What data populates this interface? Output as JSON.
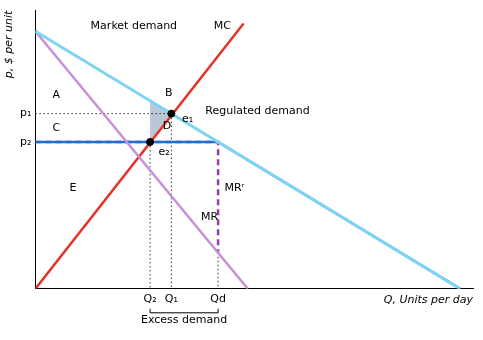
{
  "chart_data": {
    "type": "line",
    "x_label": "Q, Units per day",
    "y_label": "p, $ per unit",
    "xlim": [
      0,
      103
    ],
    "ylim": [
      0,
      108
    ],
    "xticks": [
      {
        "value": 27,
        "label": "Q₂"
      },
      {
        "value": 32,
        "label": "Q₁"
      },
      {
        "value": 43,
        "label": "Qd"
      }
    ],
    "yticks": [
      {
        "value": 68,
        "label": "p₁"
      },
      {
        "value": 57,
        "label": "p₂"
      }
    ],
    "grid": false,
    "series": [
      {
        "name": "Market demand",
        "color": "#7fd4f2",
        "x": [
          0,
          100
        ],
        "values": [
          100,
          0
        ],
        "line_style": "solid"
      },
      {
        "name": "MR",
        "color": "#c890d8",
        "x": [
          0,
          50
        ],
        "values": [
          100,
          0
        ],
        "line_style": "solid"
      },
      {
        "name": "MC",
        "color": "#e53228",
        "x": [
          0,
          49
        ],
        "values": [
          0,
          103
        ],
        "line_style": "solid"
      },
      {
        "name": "Regulated demand",
        "color": "#1e6fd0",
        "x": [
          0,
          43,
          100
        ],
        "values": [
          57,
          57,
          0
        ],
        "line_style": "solid"
      },
      {
        "name": "MRʳ",
        "color": "#8e3fa0",
        "x": [
          0,
          43,
          43
        ],
        "values": [
          57,
          57,
          14
        ],
        "line_style": "dashed"
      }
    ],
    "points": [
      {
        "label": "e₁",
        "x": 32,
        "y": 68,
        "label_x": 34.5,
        "label_y": 66
      },
      {
        "label": "e₂",
        "x": 27,
        "y": 57,
        "label_x": 29,
        "label_y": 53
      }
    ],
    "shaded_region": {
      "color": "#b9c7d6",
      "x": [
        27,
        32,
        27
      ],
      "values": [
        73,
        68,
        57
      ]
    },
    "annotations": [
      {
        "text": "Market demand",
        "x": 13,
        "y": 102
      },
      {
        "text": "MC",
        "x": 42,
        "y": 102
      },
      {
        "text": "A",
        "x": 4,
        "y": 75
      },
      {
        "text": "B",
        "x": 30.5,
        "y": 76
      },
      {
        "text": "C",
        "x": 4,
        "y": 62.5
      },
      {
        "text": "D",
        "x": 30,
        "y": 63
      },
      {
        "text": "E",
        "x": 8,
        "y": 39
      },
      {
        "text": "Regulated demand",
        "x": 40,
        "y": 69
      },
      {
        "text": "MR",
        "x": 39,
        "y": 28
      },
      {
        "text": "MRʳ",
        "x": 44.5,
        "y": 39
      }
    ],
    "bracket": {
      "label": "Excess demand",
      "from": 27,
      "to": 43
    }
  }
}
